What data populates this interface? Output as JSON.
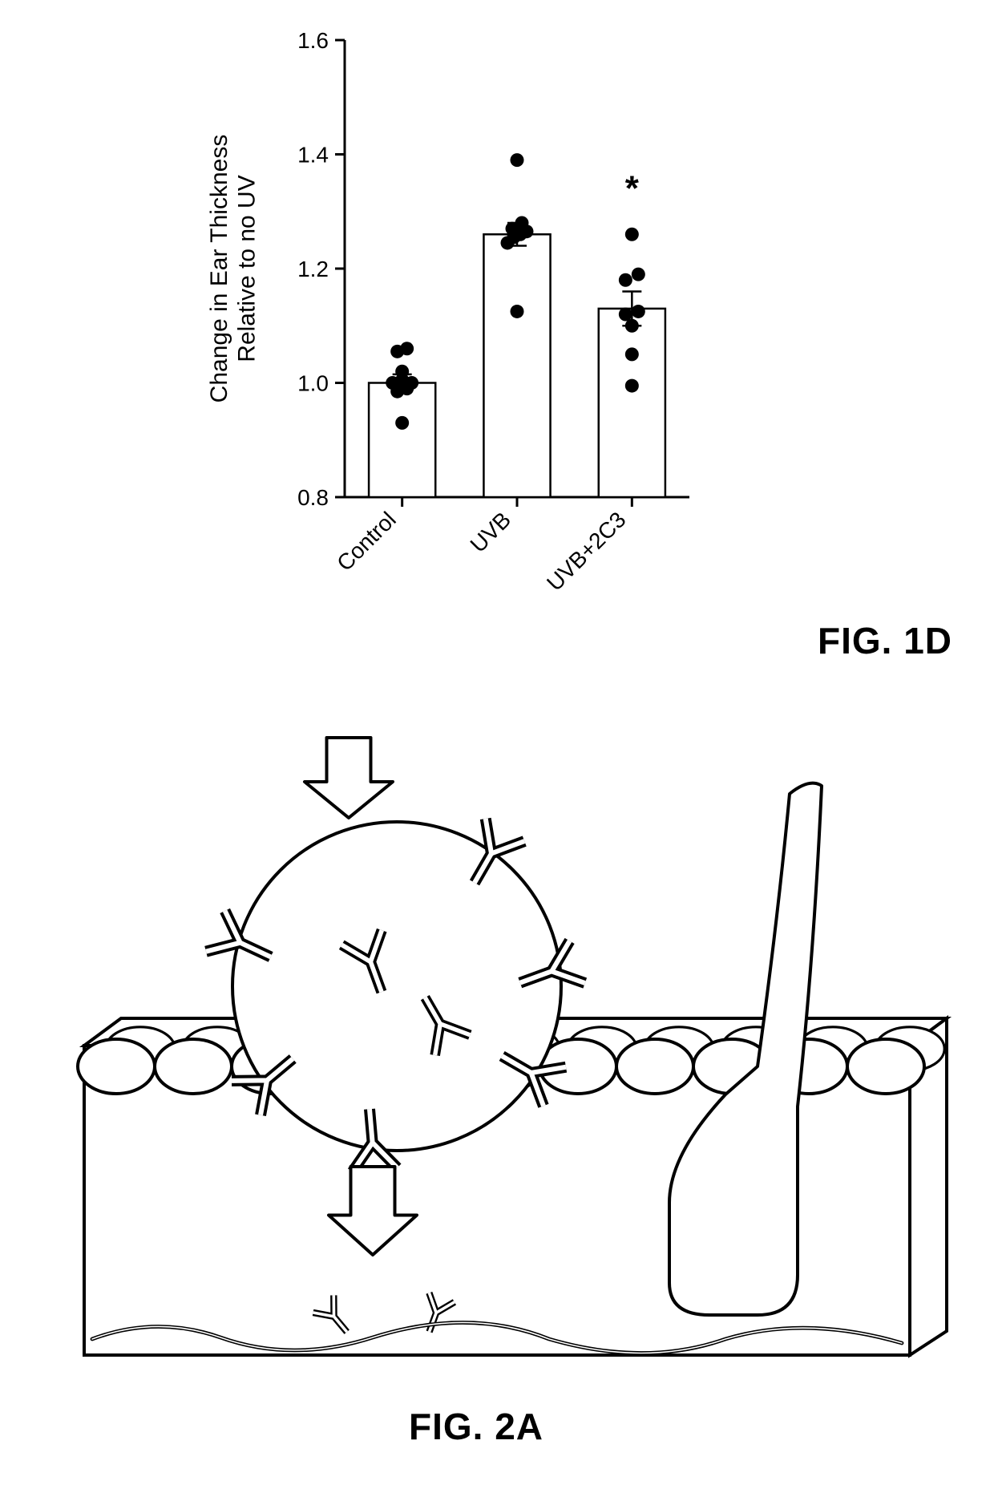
{
  "figure1d": {
    "label": "FIG. 1D",
    "chart": {
      "type": "bar+scatter",
      "ylabel": "Change in Ear Thickness\nRelative to no UV",
      "label_fontsize": 30,
      "ylim": [
        0.8,
        1.6
      ],
      "yticks": [
        0.8,
        1.0,
        1.2,
        1.4,
        1.6
      ],
      "ytick_labels": [
        "0.8",
        "1.0",
        "1.2",
        "1.4",
        "1.6"
      ],
      "categories": [
        "Control",
        "UVB",
        "UVB+2C3"
      ],
      "bar_heights": [
        1.0,
        1.26,
        1.13
      ],
      "bar_color": "#ffffff",
      "bar_border": "#000000",
      "bar_border_width": 2.5,
      "bar_width": 0.58,
      "errorbars": [
        {
          "lower": 0.985,
          "upper": 1.015
        },
        {
          "lower": 1.24,
          "upper": 1.28
        },
        {
          "lower": 1.1,
          "upper": 1.16
        }
      ],
      "errorbar_color": "#000000",
      "errorbar_width": 2.5,
      "errorbar_capsize": 12,
      "points": [
        [
          0.93,
          0.985,
          0.99,
          1.0,
          1.0,
          1.005,
          1.02,
          1.055,
          1.06
        ],
        [
          1.125,
          1.245,
          1.255,
          1.26,
          1.265,
          1.27,
          1.28,
          1.39
        ],
        [
          0.995,
          1.05,
          1.1,
          1.12,
          1.125,
          1.18,
          1.19,
          1.26
        ]
      ],
      "point_jitter": [
        [
          0,
          -0.09,
          0.09,
          -0.18,
          0.18,
          0,
          0,
          -0.09,
          0.09
        ],
        [
          0,
          -0.18,
          -0.06,
          0.06,
          0.18,
          -0.09,
          0.09,
          0
        ],
        [
          0,
          0,
          0,
          -0.12,
          0.12,
          -0.12,
          0.12,
          0
        ]
      ],
      "point_color": "#000000",
      "point_radius": 8.5,
      "significance_marks": [
        {
          "category_index": 2,
          "y": 1.32,
          "text": "*",
          "fontsize": 44
        }
      ],
      "axis_color": "#000000",
      "axis_width": 3,
      "tick_fontsize": 28,
      "xlabel_rotation": -45,
      "background_color": "#ffffff"
    }
  },
  "figure2a": {
    "label": "FIG. 2A",
    "diagram": {
      "type": "infographic",
      "stroke_color": "#000000",
      "stroke_width": 4,
      "fill_color": "#ffffff",
      "background_color": "#ffffff"
    }
  }
}
